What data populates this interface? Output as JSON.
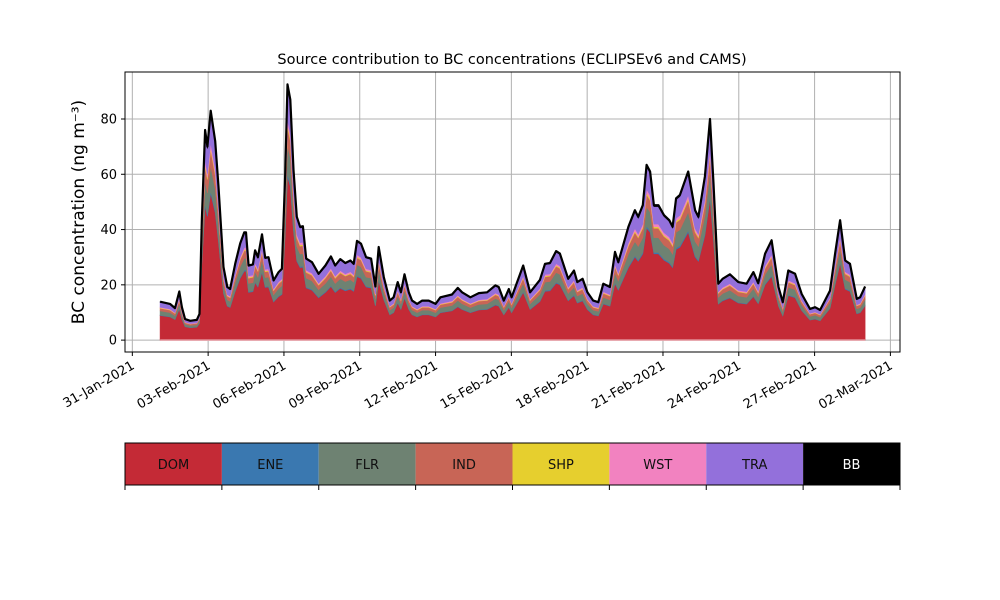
{
  "chart_data": {
    "type": "area",
    "stacked": true,
    "title": "Source contribution to BC concentrations (ECLIPSEv6 and CAMS)",
    "xlabel": "",
    "ylabel": "BC concentration (ng m⁻³)",
    "x_unit": "days since 31-Jan-2021",
    "xlim": [
      -0.29,
      30.38
    ],
    "ylim": [
      -4.3,
      97
    ],
    "grid": true,
    "xticks": [
      0,
      3,
      6,
      9,
      12,
      15,
      18,
      21,
      24,
      27,
      30
    ],
    "xtick_labels": [
      "31-Jan-2021",
      "03-Feb-2021",
      "06-Feb-2021",
      "09-Feb-2021",
      "12-Feb-2021",
      "15-Feb-2021",
      "18-Feb-2021",
      "21-Feb-2021",
      "24-Feb-2021",
      "27-Feb-2021",
      "02-Mar-2021"
    ],
    "yticks": [
      0,
      20,
      40,
      60,
      80
    ],
    "ytick_labels": [
      "0",
      "20",
      "40",
      "60",
      "80"
    ],
    "x": [
      1.1,
      1.49,
      1.69,
      1.86,
      1.96,
      2.09,
      2.29,
      2.55,
      2.66,
      2.75,
      2.88,
      2.97,
      3.1,
      3.28,
      3.41,
      3.61,
      3.76,
      3.87,
      4.07,
      4.27,
      4.43,
      4.5,
      4.6,
      4.77,
      4.86,
      4.97,
      5.13,
      5.26,
      5.39,
      5.59,
      5.79,
      5.92,
      6.05,
      6.14,
      6.25,
      6.38,
      6.51,
      6.64,
      6.75,
      6.88,
      7.11,
      7.37,
      7.64,
      7.86,
      8.03,
      8.23,
      8.43,
      8.63,
      8.76,
      8.89,
      9.05,
      9.25,
      9.45,
      9.62,
      9.75,
      9.95,
      10.19,
      10.34,
      10.5,
      10.63,
      10.77,
      10.94,
      11.07,
      11.27,
      11.47,
      11.73,
      12.0,
      12.19,
      12.65,
      12.88,
      13.05,
      13.38,
      13.71,
      14.04,
      14.37,
      14.5,
      14.7,
      14.9,
      15.01,
      15.47,
      15.74,
      16.13,
      16.33,
      16.53,
      16.77,
      16.92,
      17.25,
      17.48,
      17.61,
      17.82,
      18.01,
      18.24,
      18.44,
      18.64,
      18.9,
      19.1,
      19.23,
      19.63,
      19.89,
      20.02,
      20.2,
      20.35,
      20.49,
      20.64,
      20.82,
      21.04,
      21.25,
      21.38,
      21.52,
      21.67,
      22.0,
      22.27,
      22.4,
      22.66,
      22.86,
      23.0,
      23.19,
      23.36,
      23.65,
      23.98,
      24.31,
      24.58,
      24.77,
      25.04,
      25.3,
      25.57,
      25.74,
      25.96,
      26.23,
      26.49,
      26.82,
      27.02,
      27.22,
      27.61,
      27.81,
      28.01,
      28.21,
      28.4,
      28.67,
      28.8,
      29.0
    ],
    "total": [
      13.9,
      13.1,
      11.6,
      17.6,
      11.9,
      7.6,
      7.0,
      7.3,
      9.5,
      43,
      76,
      70,
      83,
      72,
      55.5,
      26.4,
      19.2,
      18.5,
      27.6,
      35,
      39,
      39,
      27,
      27.4,
      32.5,
      30,
      38.3,
      29.8,
      30,
      21.6,
      24.6,
      25.8,
      60,
      92.5,
      87,
      61.6,
      44.6,
      41,
      41.2,
      29.5,
      28.2,
      24,
      27,
      30.3,
      27,
      29.3,
      27.9,
      28.8,
      27.6,
      35.9,
      34.9,
      30,
      29.5,
      19.4,
      33.7,
      22.8,
      14.3,
      15.5,
      21,
      17.3,
      23.8,
      17.3,
      14.3,
      13.1,
      14.3,
      14.3,
      13.1,
      15.5,
      16.5,
      18.9,
      17.3,
      15.5,
      17,
      17.3,
      19.8,
      19.2,
      14.3,
      18.5,
      15.5,
      27,
      17.3,
      21.8,
      27.6,
      27.9,
      32.2,
      31.3,
      22.2,
      25.2,
      21,
      22.2,
      17.3,
      14.3,
      13.7,
      20.4,
      19.2,
      31.9,
      28.2,
      41,
      47,
      44.6,
      48.8,
      63.4,
      61,
      48.8,
      48.8,
      45.2,
      43.4,
      41,
      51.3,
      52.5,
      61,
      47,
      44.6,
      59.2,
      80,
      56.7,
      20.4,
      22.2,
      23.8,
      21,
      20.4,
      24.6,
      20.6,
      31.3,
      36.1,
      19.2,
      13.7,
      25.2,
      24,
      16.7,
      11.3,
      11.9,
      10.9,
      17.9,
      31.3,
      43.4,
      28.8,
      27.6,
      14.9,
      15.5,
      19.4
    ],
    "series": [
      {
        "name": "DOM",
        "color": "#c42a36",
        "share": 0.64
      },
      {
        "name": "ENE",
        "color": "#3a78b0",
        "share": 0.01
      },
      {
        "name": "FLR",
        "color": "#6e8272",
        "share": 0.11
      },
      {
        "name": "IND",
        "color": "#c86556",
        "share": 0.07
      },
      {
        "name": "SHP",
        "color": "#e6cf2e",
        "share": 0.01
      },
      {
        "name": "WST",
        "color": "#f282c0",
        "share": 0.02
      },
      {
        "name": "TRA",
        "color": "#9370db",
        "share": 0.13
      },
      {
        "name": "BB",
        "color": "#000000",
        "share": 0.01
      }
    ],
    "legend": {
      "placement": "bottom colorbar",
      "labels": [
        "DOM",
        "ENE",
        "FLR",
        "IND",
        "SHP",
        "WST",
        "TRA",
        "BB"
      ]
    }
  }
}
